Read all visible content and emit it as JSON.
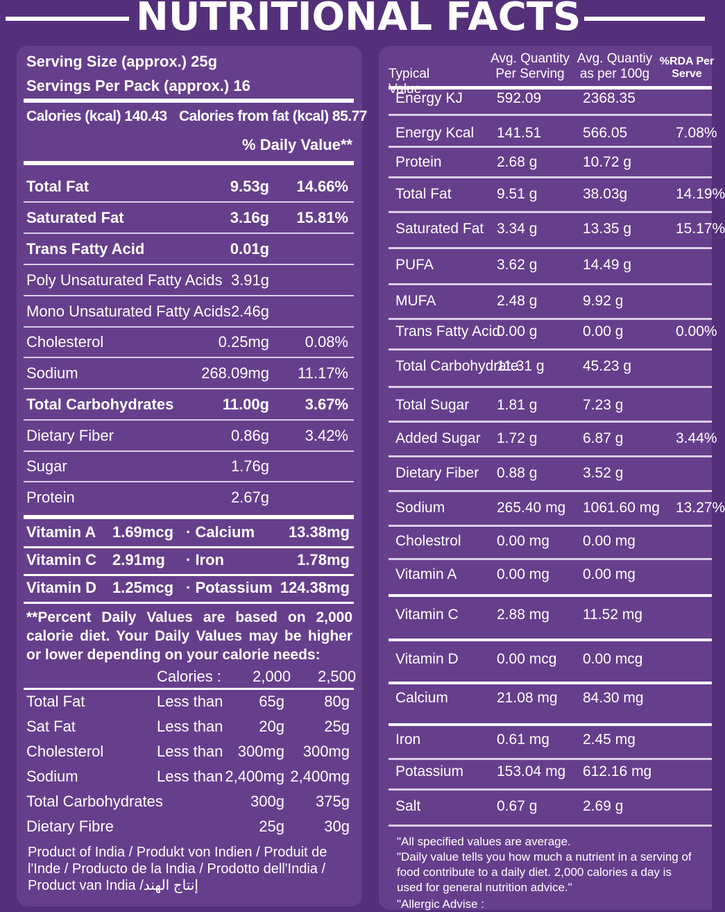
{
  "header": {
    "title": "NUTRITIONAL FACTS"
  },
  "left": {
    "serving_size": "Serving Size (approx.) 25g",
    "servings_per_pack": "Servings Per Pack (approx.) 16",
    "calories": "Calories (kcal)  140.43",
    "calories_fat": "Calories from fat (kcal)  85.77",
    "daily_value_header": "% Daily Value**",
    "nutrients": [
      {
        "name": "Total Fat",
        "amount": "9.53g",
        "dv": "14.66%"
      },
      {
        "name": "Saturated Fat",
        "amount": "3.16g",
        "dv": "15.81%"
      },
      {
        "name": "Trans Fatty Acid",
        "amount": "0.01g",
        "dv": ""
      },
      {
        "name": "Poly Unsaturated Fatty Acids",
        "amount": "3.91g",
        "dv": ""
      },
      {
        "name": "Mono Unsaturated Fatty Acids",
        "amount": "2.46g",
        "dv": ""
      },
      {
        "name": "Cholesterol",
        "amount": "0.25mg",
        "dv": "0.08%"
      },
      {
        "name": "Sodium",
        "amount": "268.09mg",
        "dv": "11.17%"
      },
      {
        "name": "Total Carbohydrates",
        "amount": "11.00g",
        "dv": "3.67%"
      },
      {
        "name": "Dietary Fiber",
        "amount": "0.86g",
        "dv": "3.42%"
      },
      {
        "name": "Sugar",
        "amount": "1.76g",
        "dv": ""
      },
      {
        "name": "Protein",
        "amount": "2.67g",
        "dv": ""
      }
    ],
    "vitamins": [
      {
        "a": "Vitamin A",
        "av": "1.69mcg",
        "b": "· Calcium",
        "bv": "13.38mg"
      },
      {
        "a": "Vitamin C",
        "av": "2.91mg",
        "b": "· Iron",
        "bv": "1.78mg"
      },
      {
        "a": "Vitamin D",
        "av": "1.25mcg",
        "b": "· Potassium",
        "bv": "124.38mg"
      }
    ],
    "note": "**Percent Daily Values are based on 2,000 calorie diet. Your Daily Values may be higher or lower depending on your calorie needs:",
    "calories_row": {
      "label": "Calories :",
      "c1": "2,000",
      "c2": "2,500"
    },
    "limits": [
      {
        "name": "Total Fat",
        "cmp": "Less than",
        "c1": "65g",
        "c2": "80g"
      },
      {
        "name": "Sat Fat",
        "cmp": "Less than",
        "c1": "20g",
        "c2": "25g"
      },
      {
        "name": "Cholesterol",
        "cmp": "Less than",
        "c1": "300mg",
        "c2": "300mg"
      },
      {
        "name": "Sodium",
        "cmp": "Less than",
        "c1": "2,400mg",
        "c2": "2,400mg"
      },
      {
        "name": "Total Carbohydrates",
        "cmp": "",
        "c1": "300g",
        "c2": "375g"
      },
      {
        "name": "Dietary Fibre",
        "cmp": "",
        "c1": "25g",
        "c2": "30g"
      }
    ],
    "origin": "Product of India / Produkt von Indien / Produit de l'Inde / Producto de la India / Prodotto dell'India / Product van India /إنتاج الهند"
  },
  "right": {
    "headers": {
      "typical": "Typical Value",
      "per_serving": "Avg. Quantity Per Serving",
      "per_100g": "Avg. Quantiy as per 100g",
      "rda": "%RDA Per Serve"
    },
    "rows": [
      {
        "name": "Energy KJ",
        "serving": "592.09",
        "per100": "2368.35",
        "rda": ""
      },
      {
        "name": "Energy Kcal",
        "serving": "141.51",
        "per100": "566.05",
        "rda": "7.08%"
      },
      {
        "name": "Protein",
        "serving": "2.68 g",
        "per100": "10.72 g",
        "rda": ""
      },
      {
        "name": "Total Fat",
        "serving": "9.51 g",
        "per100": "38.03g",
        "rda": "14.19%"
      },
      {
        "name": "Saturated Fat",
        "serving": "3.34 g",
        "per100": "13.35 g",
        "rda": "15.17%"
      },
      {
        "name": "PUFA",
        "serving": "3.62 g",
        "per100": "14.49 g",
        "rda": ""
      },
      {
        "name": "MUFA",
        "serving": "2.48 g",
        "per100": "9.92 g",
        "rda": ""
      },
      {
        "name": "Trans Fatty Acid",
        "serving": "0.00 g",
        "per100": "0.00 g",
        "rda": "0.00%"
      },
      {
        "name": "Total Carbohydrate",
        "serving": "11.31 g",
        "per100": "45.23 g",
        "rda": ""
      },
      {
        "name": "Total Sugar",
        "serving": "1.81 g",
        "per100": "7.23 g",
        "rda": ""
      },
      {
        "name": "Added Sugar",
        "serving": "1.72 g",
        "per100": "6.87 g",
        "rda": "3.44%"
      },
      {
        "name": "Dietary Fiber",
        "serving": "0.88 g",
        "per100": "3.52 g",
        "rda": ""
      },
      {
        "name": "Sodium",
        "serving": "265.40 mg",
        "per100": "1061.60 mg",
        "rda": "13.27%"
      },
      {
        "name": "Cholestrol",
        "serving": "0.00 mg",
        "per100": "0.00 mg",
        "rda": ""
      },
      {
        "name": "Vitamin A",
        "serving": "0.00 mg",
        "per100": "0.00 mg",
        "rda": ""
      },
      {
        "name": "Vitamin C",
        "serving": "2.88 mg",
        "per100": "11.52 mg",
        "rda": ""
      },
      {
        "name": "Vitamin D",
        "serving": "0.00 mcg",
        "per100": "0.00 mcg",
        "rda": ""
      },
      {
        "name": "Calcium",
        "serving": "21.08 mg",
        "per100": "84.30 mg",
        "rda": ""
      },
      {
        "name": "Iron",
        "serving": "0.61 mg",
        "per100": "2.45 mg",
        "rda": ""
      },
      {
        "name": "Potassium",
        "serving": "153.04 mg",
        "per100": "612.16 mg",
        "rda": ""
      },
      {
        "name": "Salt",
        "serving": "0.67 g",
        "per100": "2.69 g",
        "rda": ""
      }
    ],
    "footnotes": [
      "\"All specified values are average.",
      "\"Daily value tells you how much a nutrient in a serving of food contribute to a daily diet. 2,000 calories a day is used for general nutrition advice.\"",
      "\"Allergic Advise :"
    ]
  }
}
